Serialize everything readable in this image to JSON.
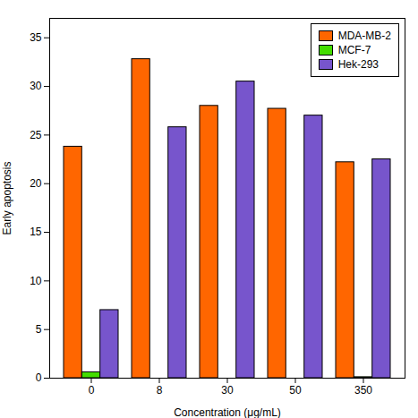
{
  "chart_data": {
    "type": "bar",
    "xlabel": "Concentration (μg/mL)",
    "ylabel": "Early apoptosis",
    "categories": [
      "0",
      "8",
      "30",
      "50",
      "350"
    ],
    "series": [
      {
        "name": "MDA-MB-2",
        "color": "#FF6600",
        "values": [
          23.8,
          32.8,
          28.0,
          27.7,
          22.2
        ]
      },
      {
        "name": "MCF-7",
        "color": "#44DD00",
        "values": [
          0.6,
          0,
          0,
          0,
          0.1
        ]
      },
      {
        "name": "Hek-293",
        "color": "#7755CC",
        "values": [
          7.0,
          25.8,
          30.5,
          27.0,
          22.5
        ]
      }
    ],
    "ylim": [
      0,
      37
    ],
    "yticks": [
      0,
      5,
      10,
      15,
      20,
      25,
      30,
      35
    ],
    "grid": false,
    "legend": "upper right"
  }
}
